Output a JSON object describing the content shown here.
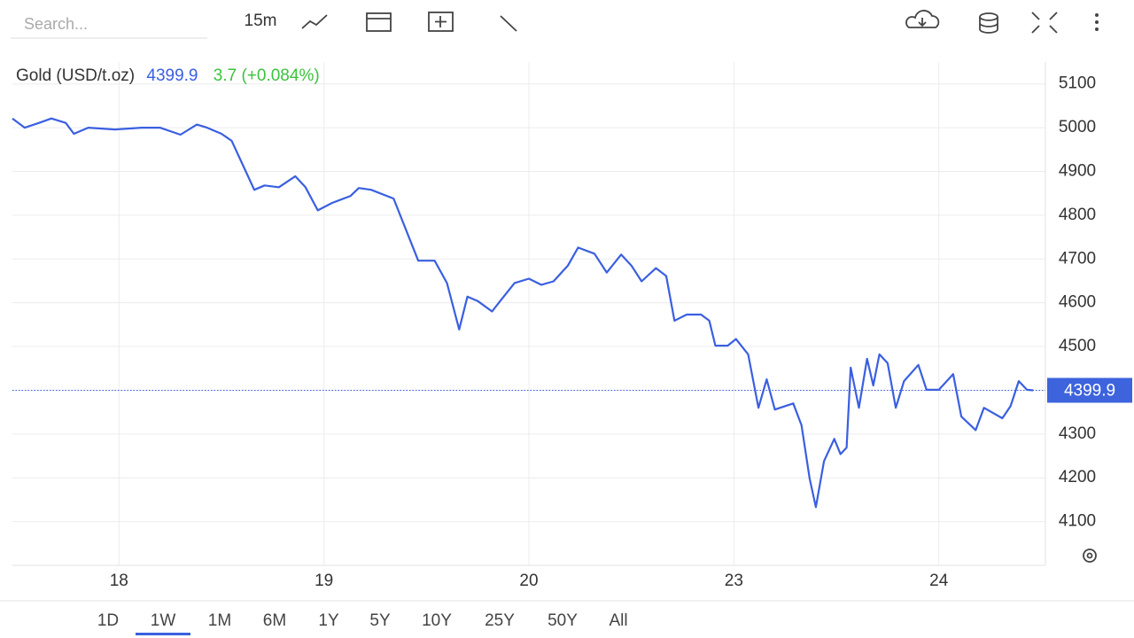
{
  "toolbar": {
    "search_placeholder": "Search...",
    "interval": "15m"
  },
  "ranges": [
    "1D",
    "1W",
    "1M",
    "6M",
    "1Y",
    "5Y",
    "10Y",
    "25Y",
    "50Y",
    "All"
  ],
  "selected_range": "1W",
  "chart_data": {
    "type": "line",
    "title": "Gold (USD/t.oz)",
    "change": "3.7 (+0.084%)",
    "x": [
      -0.52,
      -0.46,
      -0.39,
      -0.33,
      -0.26,
      -0.22,
      -0.15,
      -0.02,
      0.11,
      0.2,
      0.3,
      0.38,
      0.43,
      0.5,
      0.55,
      0.61,
      0.66,
      0.71,
      0.78,
      0.86,
      0.91,
      0.97,
      1.04,
      1.13,
      1.17,
      1.23,
      1.34,
      1.4,
      1.46,
      1.54,
      1.6,
      1.66,
      1.7,
      1.75,
      1.82,
      1.86,
      1.93,
      2.0,
      2.06,
      2.12,
      2.19,
      2.24,
      2.32,
      2.38,
      2.45,
      2.5,
      2.55,
      2.62,
      2.67,
      2.71,
      2.77,
      2.84,
      2.88,
      2.91,
      2.97,
      3.01,
      3.07,
      3.12,
      3.16,
      3.2,
      3.29,
      3.33,
      3.37,
      3.4,
      3.44,
      3.49,
      3.52,
      3.55,
      3.57,
      3.61,
      3.65,
      3.68,
      3.71,
      3.75,
      3.79,
      3.83,
      3.9,
      3.94,
      4.0,
      4.07,
      4.11,
      4.18,
      4.22,
      4.31,
      4.35,
      4.39,
      4.43,
      4.46
    ],
    "series": [
      {
        "name": "Gold",
        "color": "#3a5fe0",
        "values": [
          5021,
          5000,
          5011,
          5021,
          5011,
          4986,
          5000,
          4996,
          5000,
          5000,
          4984,
          5007,
          5000,
          4986,
          4970,
          4909,
          4858,
          4868,
          4864,
          4889,
          4864,
          4811,
          4828,
          4844,
          4862,
          4858,
          4838,
          4767,
          4696,
          4696,
          4645,
          4539,
          4614,
          4604,
          4580,
          4604,
          4645,
          4655,
          4641,
          4649,
          4685,
          4726,
          4712,
          4669,
          4710,
          4685,
          4649,
          4679,
          4661,
          4559,
          4573,
          4573,
          4559,
          4502,
          4502,
          4517,
          4482,
          4360,
          4425,
          4356,
          4370,
          4320,
          4198,
          4133,
          4238,
          4289,
          4254,
          4269,
          4452,
          4360,
          4472,
          4411,
          4482,
          4462,
          4360,
          4421,
          4458,
          4401,
          4401,
          4437,
          4340,
          4309,
          4360,
          4336,
          4364,
          4421,
          4401,
          4399.9
        ]
      }
    ],
    "xlim": [
      -0.52,
      4.52
    ],
    "xticks": [
      {
        "value": 0,
        "label": "18"
      },
      {
        "value": 1,
        "label": "19"
      },
      {
        "value": 2,
        "label": "20"
      },
      {
        "value": 3,
        "label": "23"
      },
      {
        "value": 4,
        "label": "24"
      }
    ],
    "ylim": [
      4000,
      5150
    ],
    "yticks": [
      4100,
      4200,
      4300,
      4400,
      4500,
      4600,
      4700,
      4800,
      4900,
      5000,
      5100
    ],
    "grid": true
  }
}
